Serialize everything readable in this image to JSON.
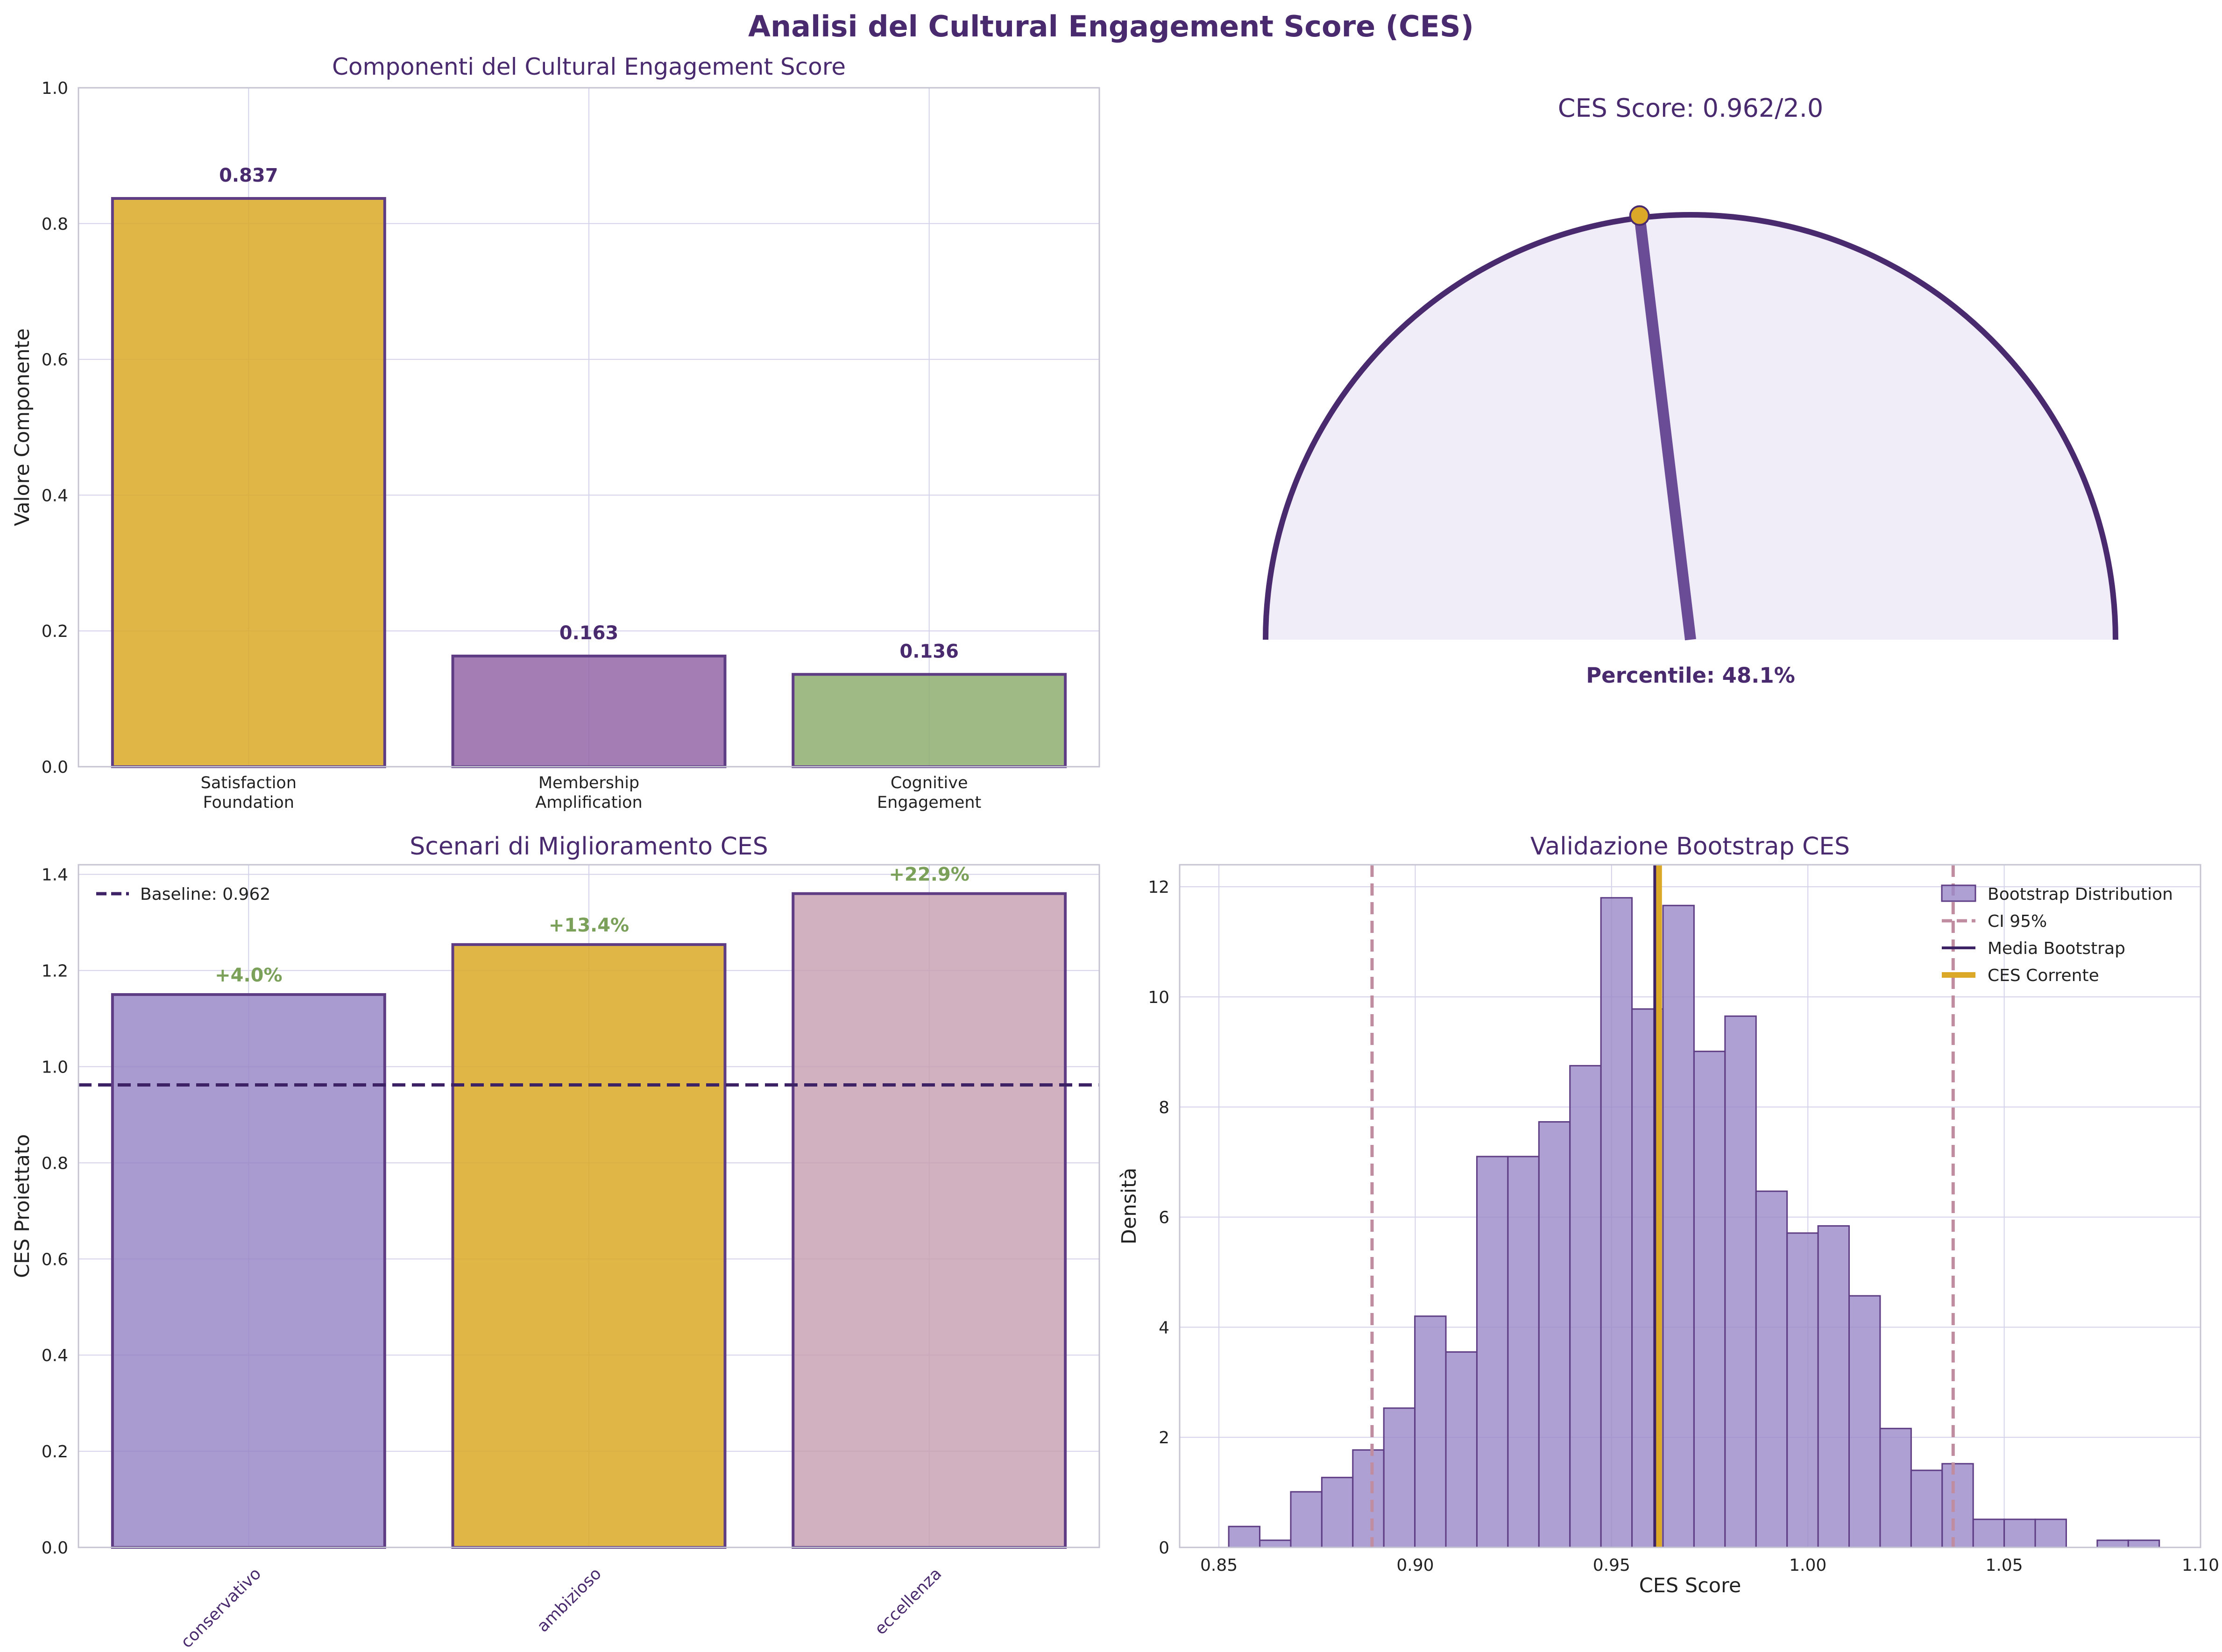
{
  "figure": {
    "suptitle": "Analisi del Cultural Engagement Score (CES)"
  },
  "colors": {
    "title": "#4a2a6e",
    "gold": "#dba927",
    "purple": "#9566a8",
    "green": "#8fae71",
    "lavender": "#9a88c8",
    "mauve": "#c9a2b4",
    "edge": "#5e3d84",
    "navy": "#3e2266",
    "grid": "#d4d2ea",
    "pct_green": "#7ba05a",
    "ci_pink": "#c08da0",
    "gauge_fill": "#f1edf8",
    "gauge_edge": "#4a2a6e",
    "needle": "#6a4c96",
    "dot": "#dba927"
  },
  "chart_data": [
    {
      "id": "components",
      "type": "bar",
      "title": "Componenti del Cultural Engagement Score",
      "ylabel": "Valore Componente",
      "xlabel": "",
      "categories": [
        "Satisfaction\nFoundation",
        "Membership\nAmplification",
        "Cognitive\nEngagement"
      ],
      "values": [
        0.837,
        0.163,
        0.136
      ],
      "value_labels": [
        "0.837",
        "0.163",
        "0.136"
      ],
      "bar_colors": [
        "#dba927",
        "#9566a8",
        "#8fae71"
      ],
      "ylim": [
        0,
        1.0
      ],
      "yticks": [
        0,
        0.2,
        0.4,
        0.6,
        0.8,
        1.0
      ],
      "ytick_labels": [
        "0.0",
        "0.2",
        "0.4",
        "0.6",
        "0.8",
        "1.0"
      ],
      "grid": true
    },
    {
      "id": "gauge",
      "type": "gauge",
      "title": "CES Score: 0.962/2.0",
      "value": 0.962,
      "max": 2.0,
      "percentile_label": "Percentile: 48.1%"
    },
    {
      "id": "scenarios",
      "type": "bar",
      "title": "Scenari di Miglioramento CES",
      "ylabel": "CES Proiettato",
      "xlabel": "",
      "categories": [
        "conservativo",
        "ambizioso",
        "eccellenza"
      ],
      "values": [
        1.15,
        1.254,
        1.36
      ],
      "value_labels": [
        "+4.0%",
        "+13.4%",
        "+22.9%"
      ],
      "bar_colors": [
        "#9a88c8",
        "#dba927",
        "#c9a2b4"
      ],
      "baseline": 0.962,
      "legend": [
        {
          "label": "Baseline: 0.962",
          "style": "dashed"
        }
      ],
      "legend_placement": "upper-left",
      "ylim": [
        0,
        1.42
      ],
      "yticks": [
        0,
        0.2,
        0.4,
        0.6,
        0.8,
        1.0,
        1.2,
        1.4
      ],
      "ytick_labels": [
        "0.0",
        "0.2",
        "0.4",
        "0.6",
        "0.8",
        "1.0",
        "1.2",
        "1.4"
      ],
      "grid": true
    },
    {
      "id": "bootstrap",
      "type": "histogram",
      "title": "Validazione Bootstrap CES",
      "xlabel": "CES Score",
      "ylabel": "Densità",
      "bin_start": 0.8525,
      "bin_width": 0.0079,
      "densities": [
        0.38,
        0.13,
        1.01,
        1.27,
        1.77,
        2.53,
        4.2,
        3.55,
        7.1,
        7.1,
        7.73,
        8.75,
        11.8,
        9.78,
        11.66,
        9.01,
        9.65,
        6.47,
        5.71,
        5.84,
        4.57,
        2.16,
        1.4,
        1.52,
        0.51,
        0.51,
        0.51,
        0.0,
        0.13,
        0.13
      ],
      "xlim": [
        0.84,
        1.1
      ],
      "ylim": [
        0,
        12.4
      ],
      "xticks": [
        0.85,
        0.9,
        0.95,
        1.0,
        1.05,
        1.1
      ],
      "xtick_labels": [
        "0.85",
        "0.90",
        "0.95",
        "1.00",
        "1.05",
        "1.10"
      ],
      "yticks": [
        0,
        2,
        4,
        6,
        8,
        10,
        12
      ],
      "ytick_labels": [
        "0",
        "2",
        "4",
        "6",
        "8",
        "10",
        "12"
      ],
      "ci_95": [
        0.889,
        1.037
      ],
      "bootstrap_mean": 0.961,
      "ces_current": 0.962,
      "legend": [
        {
          "label": "Bootstrap Distribution",
          "style": "patch"
        },
        {
          "label": "CI 95%",
          "style": "dashed"
        },
        {
          "label": "Media Bootstrap",
          "style": "solid"
        },
        {
          "label": "CES Corrente",
          "style": "thick"
        }
      ],
      "legend_placement": "upper-right",
      "grid": true
    }
  ]
}
